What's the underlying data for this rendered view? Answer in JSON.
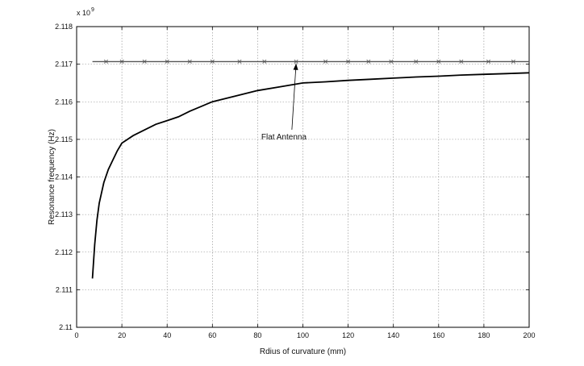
{
  "chart_data": {
    "type": "line",
    "title": "",
    "xlabel": "Rdius of curvature (mm)",
    "ylabel": "Resonance frequency (Hz)",
    "y_exponent_label": "x 10",
    "y_exponent_power": "9",
    "xlim": [
      0,
      200
    ],
    "ylim": [
      2.11,
      2.118
    ],
    "x_ticks": [
      0,
      20,
      40,
      60,
      80,
      100,
      120,
      140,
      160,
      180,
      200
    ],
    "y_ticks": [
      2.11,
      2.111,
      2.112,
      2.113,
      2.114,
      2.115,
      2.116,
      2.117,
      2.118
    ],
    "x_tick_labels": [
      "0",
      "20",
      "40",
      "60",
      "80",
      "100",
      "120",
      "140",
      "160",
      "180",
      "200"
    ],
    "y_tick_labels": [
      "2.11",
      "2.111",
      "2.112",
      "2.113",
      "2.114",
      "2.115",
      "2.116",
      "2.117",
      "2.118"
    ],
    "grid": true,
    "grid_style": "dotted",
    "series": [
      {
        "x": [
          7,
          8,
          9,
          10,
          12,
          14,
          16,
          18,
          20,
          25,
          30,
          35,
          40,
          45,
          50,
          60,
          70,
          80,
          90,
          100,
          110,
          120,
          130,
          140,
          150,
          160,
          170,
          180,
          190,
          200
        ],
        "values": [
          2.1113,
          2.1122,
          2.11285,
          2.1133,
          2.11385,
          2.1142,
          2.11445,
          2.1147,
          2.1149,
          2.1151,
          2.11525,
          2.1154,
          2.1155,
          2.1156,
          2.11575,
          2.116,
          2.11615,
          2.1163,
          2.1164,
          2.1165,
          2.11653,
          2.11657,
          2.1166,
          2.11663,
          2.11666,
          2.11668,
          2.11671,
          2.11673,
          2.11675,
          2.11677
        ],
        "color": "#000000",
        "marker": "none"
      },
      {
        "x": [
          7,
          200
        ],
        "values": [
          2.11707,
          2.11707
        ],
        "color": "#555555",
        "marker": "none"
      }
    ],
    "marker_series": {
      "x": [
        13,
        20,
        30,
        40,
        50,
        60,
        72,
        83,
        97,
        110,
        120,
        129,
        139,
        150,
        160,
        170,
        182,
        193
      ],
      "values": [
        2.11707,
        2.11707,
        2.11707,
        2.11707,
        2.11707,
        2.11707,
        2.11707,
        2.11707,
        2.11707,
        2.11707,
        2.11707,
        2.11707,
        2.11707,
        2.11707,
        2.11707,
        2.11707,
        2.11707,
        2.11707
      ],
      "marker": "x",
      "color": "#555555"
    },
    "annotation": {
      "text": "Flat Antenna",
      "text_x": 93,
      "text_y": 2.115,
      "arrow_to_x": 97,
      "arrow_to_y": 2.11702
    }
  }
}
